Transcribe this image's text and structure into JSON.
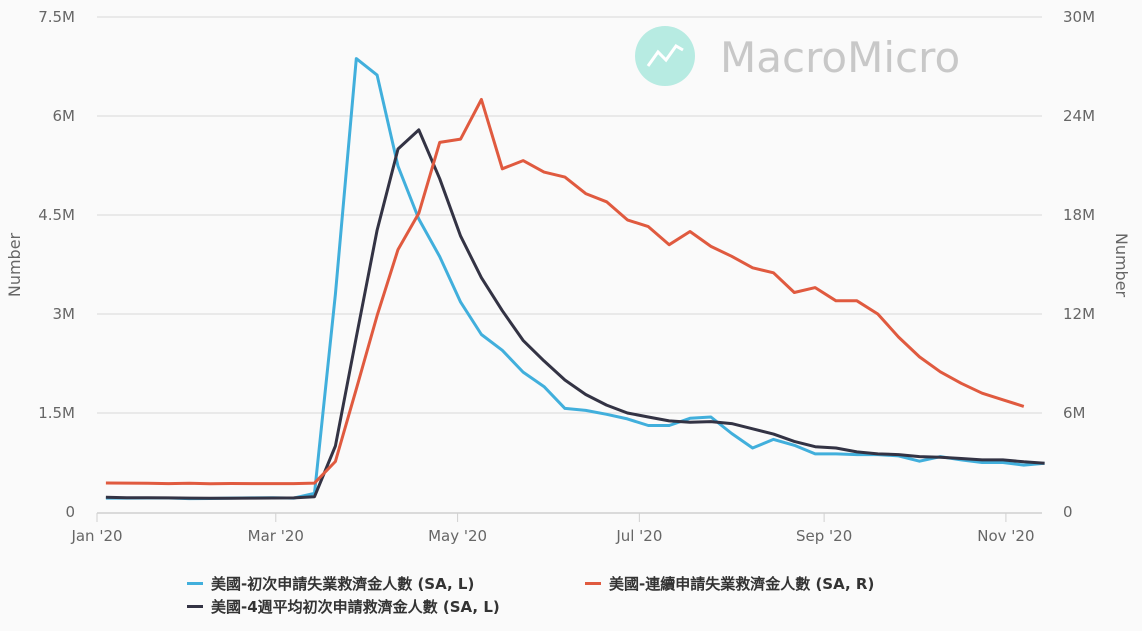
{
  "chart_data": {
    "type": "line",
    "title": "",
    "watermark": "MacroMicro",
    "y_left": {
      "label": "Number",
      "range": [
        0,
        7500000
      ],
      "ticks": [
        0,
        1500000,
        3000000,
        4500000,
        6000000,
        7500000
      ],
      "tick_labels": [
        "0",
        "1.5M",
        "3M",
        "4.5M",
        "6M",
        "7.5M"
      ]
    },
    "y_right": {
      "label": "Number",
      "range": [
        0,
        30000000
      ],
      "ticks": [
        0,
        6000000,
        12000000,
        18000000,
        24000000,
        30000000
      ],
      "tick_labels": [
        "0",
        "6M",
        "12M",
        "18M",
        "24M",
        "30M"
      ]
    },
    "x_axis": {
      "range": [
        "2020-01-01",
        "2020-11-20"
      ],
      "ticks": [
        "2020-01-01",
        "2020-03-01",
        "2020-05-01",
        "2020-07-01",
        "2020-09-01",
        "2020-11-01"
      ],
      "tick_labels": [
        "Jan '20",
        "Mar '20",
        "May '20",
        "Jul '20",
        "Sep '20",
        "Nov '20"
      ]
    },
    "grid": true,
    "legend_position": "bottom",
    "series": [
      {
        "name": "美國-初次申請失業救濟金人數 (SA, L)",
        "axis": "left",
        "color": "#41afdc",
        "start": "2020-01-04",
        "interval_days": 7,
        "values": [
          210000,
          211000,
          212000,
          212000,
          203000,
          204000,
          210000,
          214000,
          217000,
          211000,
          282000,
          3300000,
          6870000,
          6620000,
          5240000,
          4440000,
          3870000,
          3180000,
          2690000,
          2450000,
          2120000,
          1900000,
          1570000,
          1540000,
          1480000,
          1410000,
          1310000,
          1310000,
          1420000,
          1440000,
          1190000,
          970000,
          1100000,
          1010000,
          880000,
          880000,
          870000,
          870000,
          850000,
          770000,
          840000,
          790000,
          750000,
          750000,
          710000,
          740000
        ]
      },
      {
        "name": "美國-4週平均初次申請救濟金人數 (SA, L)",
        "axis": "left",
        "color": "#333344",
        "start": "2020-01-04",
        "interval_days": 7,
        "values": [
          222000,
          217000,
          215000,
          213000,
          210000,
          208000,
          208000,
          210000,
          212000,
          214000,
          232000,
          1000000,
          2650000,
          4270000,
          5500000,
          5790000,
          5050000,
          4180000,
          3550000,
          3050000,
          2600000,
          2290000,
          2000000,
          1780000,
          1620000,
          1500000,
          1440000,
          1380000,
          1360000,
          1370000,
          1340000,
          1260000,
          1180000,
          1070000,
          990000,
          970000,
          910000,
          880000,
          870000,
          840000,
          830000,
          810000,
          790000,
          790000,
          760000,
          740000
        ]
      },
      {
        "name": "美國-連續申請失業救濟金人數 (SA, R)",
        "axis": "right",
        "color": "#e05a3f",
        "start": "2020-01-04",
        "interval_days": 7,
        "values": [
          1760000,
          1750000,
          1740000,
          1720000,
          1740000,
          1710000,
          1730000,
          1720000,
          1720000,
          1720000,
          1750000,
          3060000,
          7450000,
          11900000,
          15900000,
          18100000,
          22400000,
          22600000,
          25000000,
          20800000,
          21300000,
          20600000,
          20300000,
          19300000,
          18800000,
          17700000,
          17300000,
          16200000,
          17000000,
          16100000,
          15500000,
          14800000,
          14500000,
          13300000,
          13600000,
          12800000,
          12800000,
          12000000,
          10600000,
          9400000,
          8500000,
          7800000,
          7200000,
          6800000,
          6400000
        ]
      }
    ]
  }
}
